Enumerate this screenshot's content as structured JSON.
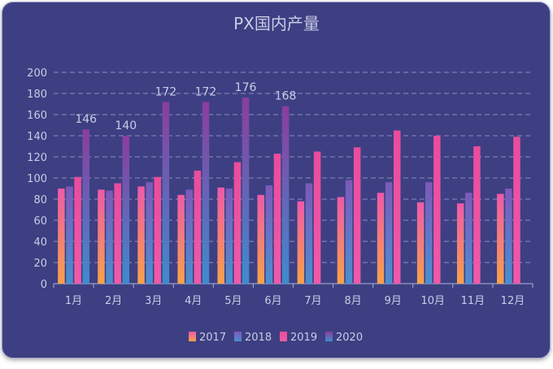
{
  "chart_data": {
    "type": "bar",
    "title": "PX国内产量",
    "categories": [
      "1月",
      "2月",
      "3月",
      "4月",
      "5月",
      "6月",
      "7月",
      "8月",
      "9月",
      "10月",
      "11月",
      "12月"
    ],
    "series": [
      {
        "name": "2017",
        "values": [
          90,
          89,
          92,
          84,
          91,
          84,
          78,
          82,
          86,
          77,
          76,
          85
        ]
      },
      {
        "name": "2018",
        "values": [
          92,
          88,
          96,
          89,
          90,
          93,
          95,
          98,
          96,
          96,
          86,
          90
        ]
      },
      {
        "name": "2019",
        "values": [
          101,
          95,
          101,
          107,
          115,
          123,
          125,
          129,
          145,
          140,
          130,
          139
        ]
      },
      {
        "name": "2020",
        "values": [
          146,
          140,
          172,
          172,
          176,
          168,
          null,
          null,
          null,
          null,
          null,
          null
        ]
      }
    ],
    "data_labels_series": "2020",
    "ylim": [
      0,
      200
    ],
    "yticks": [
      0,
      20,
      40,
      60,
      80,
      100,
      120,
      140,
      160,
      180,
      200
    ],
    "grid": true,
    "legend_position": "bottom",
    "colors": {
      "background": "#3d3f82",
      "2017": [
        "#ee5aa8",
        "#f7a24a"
      ],
      "2018": [
        "#7d59b8",
        "#4a8fd0"
      ],
      "2019": [
        "#ea4c9c",
        "#ee5aa8"
      ],
      "2020": [
        "#8b3d9e",
        "#3f8ccd"
      ]
    }
  }
}
